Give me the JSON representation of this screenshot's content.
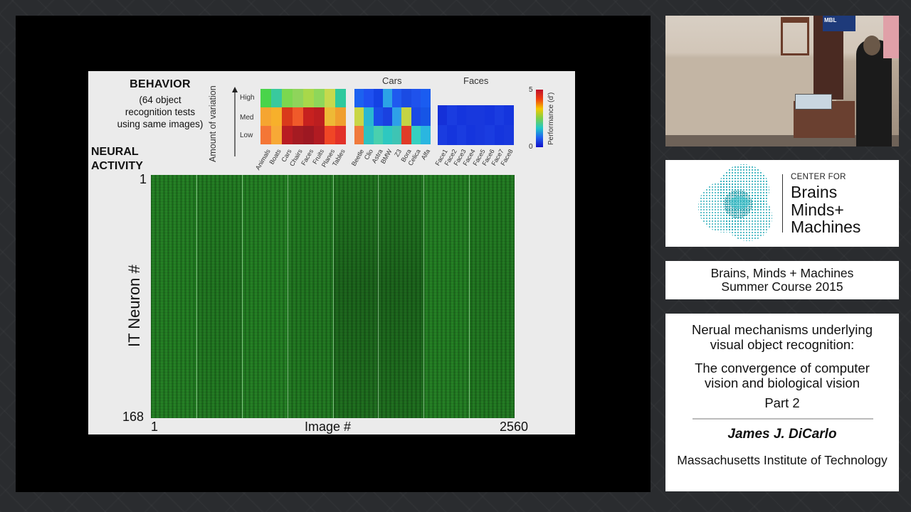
{
  "slide": {
    "behavior_title": "BEHAVIOR",
    "behavior_subtitle_lines": [
      "(64 object",
      "recognition tests",
      "using same images)"
    ],
    "neural_activity_lines": [
      "NEURAL",
      "ACTIVITY"
    ],
    "variation_axis_label": "Amount of variation",
    "variation_levels": [
      "High",
      "Med",
      "Low"
    ],
    "group_labels": {
      "cars": "Cars",
      "faces": "Faces"
    },
    "category_labels": {
      "basic": [
        "Animals",
        "Boats",
        "Cars",
        "Chairs",
        "Faces",
        "Fruits",
        "Planes",
        "Tables"
      ],
      "cars": [
        "Beetle",
        "Clio",
        "Astra",
        "BMW",
        "Z3",
        "Bora",
        "Celica",
        "Alfa"
      ],
      "faces": [
        "Face1",
        "Face2",
        "Face3",
        "Face4",
        "Face5",
        "Face6",
        "Face7",
        "Face8"
      ]
    },
    "heatmap_colors": {
      "basic": [
        [
          "#49d44a",
          "#39c99e",
          "#7bd84f",
          "#8fd45b",
          "#a8d84a",
          "#8ed75a",
          "#c6d94d",
          "#2ec99d"
        ],
        [
          "#f5a531",
          "#f7b02b",
          "#d93a1b",
          "#f05a2a",
          "#c7211f",
          "#bc1e20",
          "#eeb936",
          "#f09f2e"
        ],
        [
          "#f47636",
          "#f7a936",
          "#b81c22",
          "#a51b22",
          "#9d1822",
          "#b11b22",
          "#f04626",
          "#e23129"
        ]
      ],
      "cars": [
        [
          "#1c61f0",
          "#1e50f0",
          "#1442e4",
          "#2ba3e6",
          "#1f5aef",
          "#1a4be3",
          "#1f52ec",
          "#1a5cf0"
        ],
        [
          "#c9d646",
          "#2bb8d0",
          "#1a4ee8",
          "#1a41e0",
          "#2ea0e8",
          "#c4d444",
          "#1a4ae6",
          "#1655e6"
        ],
        [
          "#f07a3c",
          "#2ec2c0",
          "#4ad0ae",
          "#2ec8c0",
          "#3ec4b4",
          "#e03b28",
          "#36d0c0",
          "#2ab6e0"
        ]
      ],
      "faces": [
        [
          "#1530d8",
          "#1a3ce0",
          "#1535dd",
          "#1838dd",
          "#1838dd",
          "#1535dd",
          "#1a3ce0",
          "#1535dd"
        ],
        [
          "#1a3ce0",
          "#1535dd",
          "#1a3ce0",
          "#1535dd",
          "#1838dd",
          "#1a3ce0",
          "#1535dd",
          "#1838dd"
        ]
      ]
    },
    "colorbar": {
      "max": "5",
      "min": "0",
      "label": "Performance (d')"
    },
    "neuron_axis_label": "IT Neuron #",
    "neuron_ticks": [
      "1",
      "168"
    ],
    "image_axis": {
      "start": "1",
      "label": "Image #",
      "end": "2560"
    }
  },
  "camera": {
    "sign_text": "MBL"
  },
  "cbmm": {
    "center_for": "CENTER FOR",
    "lines": [
      "Brains",
      "Minds+",
      "Machines"
    ]
  },
  "course": {
    "lines": [
      "Brains, Minds + Machines",
      "Summer Course 2015"
    ]
  },
  "talk": {
    "title_lines": [
      "Nerual mechanisms underlying",
      "visual object recognition:"
    ],
    "subtitle_lines": [
      "The convergence of computer",
      "vision and biological vision"
    ],
    "part": "Part 2",
    "speaker": "James J. DiCarlo",
    "institution": "Massachusetts Institute of Technology"
  },
  "colors": {
    "page_bg": "#2a2c2f",
    "slide_bg": "#ebebeb",
    "matrix_green": "#217a21",
    "logo_teal": "#1aa6b3"
  }
}
